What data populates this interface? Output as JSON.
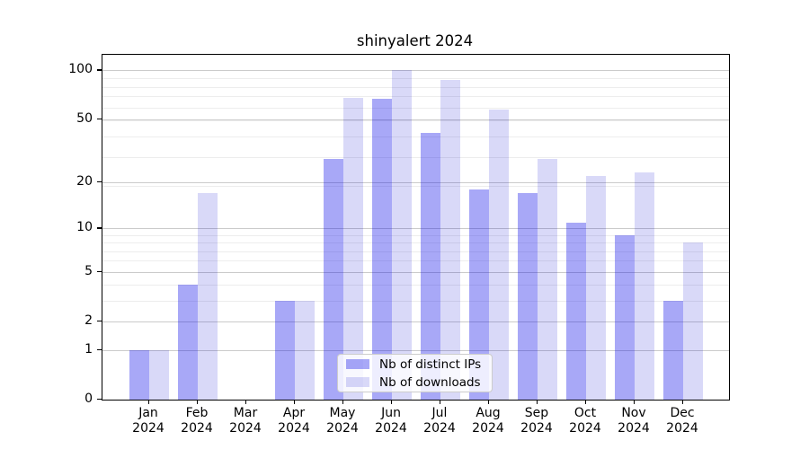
{
  "chart_data": {
    "type": "bar",
    "title": "shinyalert 2024",
    "categories": [
      "Jan 2024",
      "Feb 2024",
      "Mar 2024",
      "Apr 2024",
      "May 2024",
      "Jun 2024",
      "Jul 2024",
      "Aug 2024",
      "Sep 2024",
      "Oct 2024",
      "Nov 2024",
      "Dec 2024"
    ],
    "x_tick_lines": [
      {
        "month": "Jan",
        "year": "2024"
      },
      {
        "month": "Feb",
        "year": "2024"
      },
      {
        "month": "Mar",
        "year": "2024"
      },
      {
        "month": "Apr",
        "year": "2024"
      },
      {
        "month": "May",
        "year": "2024"
      },
      {
        "month": "Jun",
        "year": "2024"
      },
      {
        "month": "Jul",
        "year": "2024"
      },
      {
        "month": "Aug",
        "year": "2024"
      },
      {
        "month": "Sep",
        "year": "2024"
      },
      {
        "month": "Oct",
        "year": "2024"
      },
      {
        "month": "Nov",
        "year": "2024"
      },
      {
        "month": "Dec",
        "year": "2024"
      }
    ],
    "series": [
      {
        "name": "Nb of distinct IPs",
        "values": [
          1,
          4,
          0,
          3,
          28,
          67,
          41,
          18,
          17,
          11,
          9,
          3
        ],
        "color_hex": "#a9a9f7",
        "color_rgba": "rgba(0,0,232,0.34)"
      },
      {
        "name": "Nb of downloads",
        "values": [
          1,
          17,
          0,
          3,
          68,
          100,
          87,
          57,
          28,
          22,
          23,
          8
        ],
        "color_hex": "#d9d9f8",
        "color_rgba": "rgba(0,0,210,0.15)"
      }
    ],
    "y_scale": "log10(1+x)",
    "y_ticks": [
      0,
      1,
      2,
      5,
      10,
      20,
      50,
      100
    ],
    "y_minor_gridlines_one_plus": [
      4,
      5,
      7,
      8,
      9,
      10,
      20,
      30,
      40,
      50,
      60,
      70,
      80,
      90
    ],
    "ylim": [
      0,
      124
    ],
    "grid": true,
    "legend_position": "lower center",
    "colors": {
      "major_grid": "#cbcbcb",
      "minor_grid": "#ededed",
      "axis": "#000000",
      "background": "#ffffff"
    }
  }
}
